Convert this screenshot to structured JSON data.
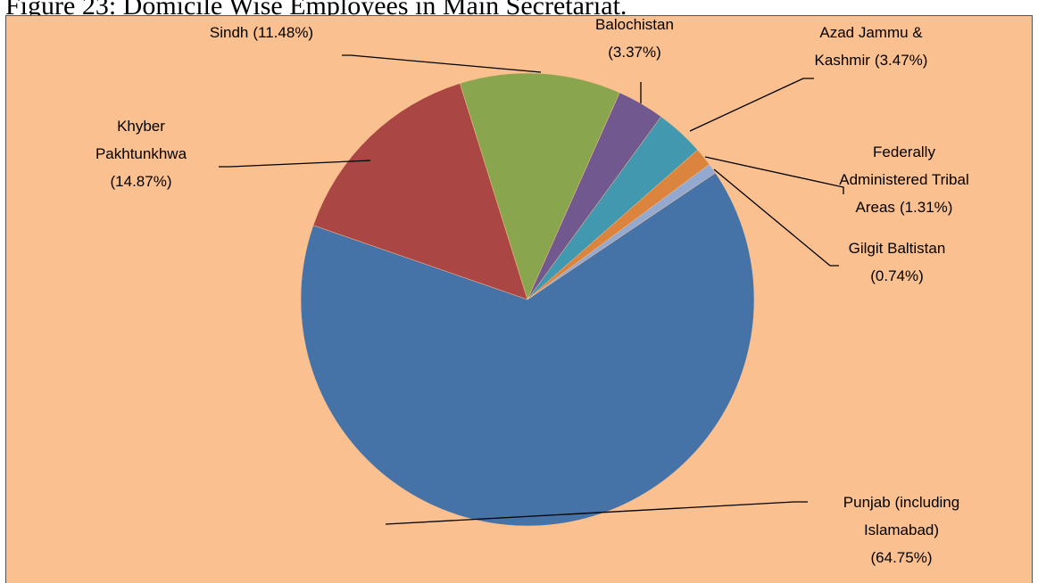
{
  "chart_data": {
    "type": "pie",
    "title": "Figure 23: Domicile Wise Employees in Main Secretariat.",
    "categories": [
      "Punjab (including Islamabad)",
      "Khyber Pakhtunkhwa",
      "Sindh",
      "Balochistan",
      "Azad Jammu & Kashmir",
      "Federally Administered Tribal Areas",
      "Gilgit Baltistan"
    ],
    "values": [
      64.75,
      14.87,
      11.48,
      3.37,
      3.47,
      1.31,
      0.74
    ],
    "value_labels": [
      "(64.75%)",
      "(14.87%)",
      "(11.48%)",
      "(3.37%)",
      "(3.47%)",
      "(1.31%)",
      "(0.74%)"
    ],
    "colors": [
      "#4572a7",
      "#aa4643",
      "#89a54e",
      "#71588f",
      "#4198af",
      "#db843d",
      "#93a9cf"
    ]
  }
}
